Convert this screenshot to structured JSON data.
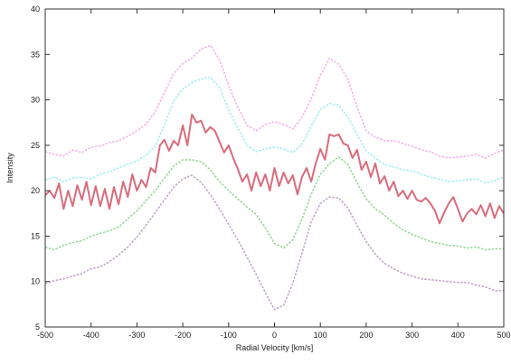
{
  "chart_data": {
    "type": "line",
    "title": "",
    "xlabel": "Radial Velocity [km/s]",
    "ylabel": "Intensity",
    "xlim": [
      -500,
      500
    ],
    "ylim": [
      5,
      40
    ],
    "grid": false,
    "legend": "none",
    "x_ticks": [
      -500,
      -400,
      -300,
      -200,
      -100,
      0,
      100,
      200,
      300,
      400,
      500
    ],
    "y_ticks": [
      5,
      10,
      15,
      20,
      25,
      30,
      35,
      40
    ],
    "x_tick_labels": [
      "-500",
      "-400",
      "-300",
      "-200",
      "-100",
      "0",
      "100",
      "200",
      "300",
      "400",
      "500"
    ],
    "y_tick_labels": [
      "5",
      "10",
      "15",
      "20",
      "25",
      "30",
      "35",
      "40"
    ],
    "series": [
      {
        "color": "#f2b6e6",
        "style": "dashed",
        "x": [
          -500,
          -480,
          -460,
          -440,
          -420,
          -400,
          -380,
          -360,
          -340,
          -320,
          -300,
          -280,
          -260,
          -240,
          -220,
          -200,
          -180,
          -160,
          -140,
          -120,
          -100,
          -80,
          -60,
          -40,
          -20,
          0,
          20,
          40,
          60,
          80,
          100,
          120,
          140,
          160,
          180,
          200,
          220,
          240,
          260,
          280,
          300,
          320,
          340,
          360,
          380,
          400,
          420,
          440,
          460,
          480,
          500
        ],
        "y": [
          24.3,
          24.0,
          23.8,
          24.5,
          24.2,
          24.8,
          24.9,
          25.3,
          25.5,
          26.0,
          26.6,
          27.3,
          28.7,
          30.8,
          32.9,
          34.0,
          34.6,
          35.6,
          36.0,
          34.4,
          31.6,
          29.2,
          27.2,
          26.6,
          27.3,
          27.6,
          27.3,
          26.8,
          28.1,
          30.1,
          32.7,
          34.6,
          33.9,
          32.3,
          29.2,
          26.6,
          25.9,
          25.5,
          25.5,
          25.2,
          24.9,
          24.5,
          24.3,
          23.8,
          23.6,
          23.7,
          23.8,
          24.0,
          23.6,
          24.1,
          24.5
        ]
      },
      {
        "color": "#a6eeee",
        "style": "dashed",
        "x": [
          -500,
          -480,
          -460,
          -440,
          -420,
          -400,
          -380,
          -360,
          -340,
          -320,
          -300,
          -280,
          -260,
          -240,
          -220,
          -200,
          -180,
          -160,
          -140,
          -120,
          -100,
          -80,
          -60,
          -40,
          -20,
          0,
          20,
          40,
          60,
          80,
          100,
          120,
          140,
          160,
          180,
          200,
          220,
          240,
          260,
          280,
          300,
          320,
          340,
          360,
          380,
          400,
          420,
          440,
          460,
          480,
          500
        ],
        "y": [
          21.2,
          21.5,
          21.0,
          21.4,
          21.5,
          21.3,
          21.8,
          22.1,
          22.5,
          22.9,
          23.3,
          23.9,
          24.9,
          27.2,
          29.9,
          31.2,
          31.9,
          32.3,
          32.5,
          31.4,
          28.9,
          26.9,
          25.0,
          24.3,
          24.6,
          24.8,
          24.6,
          24.2,
          25.1,
          27.1,
          28.9,
          29.6,
          29.4,
          28.1,
          26.2,
          24.4,
          23.6,
          22.9,
          22.6,
          22.3,
          22.2,
          21.8,
          21.5,
          21.3,
          21.0,
          21.1,
          21.2,
          21.3,
          20.9,
          21.1,
          21.5
        ]
      },
      {
        "color": "#d96c7c",
        "style": "solid",
        "x": [
          -500,
          -490,
          -480,
          -470,
          -460,
          -450,
          -440,
          -430,
          -420,
          -410,
          -400,
          -390,
          -380,
          -370,
          -360,
          -350,
          -340,
          -330,
          -320,
          -310,
          -300,
          -290,
          -280,
          -270,
          -260,
          -250,
          -240,
          -230,
          -220,
          -210,
          -200,
          -190,
          -180,
          -170,
          -160,
          -150,
          -140,
          -130,
          -120,
          -110,
          -100,
          -90,
          -80,
          -70,
          -60,
          -50,
          -40,
          -30,
          -20,
          -10,
          0,
          10,
          20,
          30,
          40,
          50,
          60,
          70,
          80,
          90,
          100,
          110,
          120,
          130,
          140,
          150,
          160,
          170,
          180,
          190,
          200,
          210,
          220,
          230,
          240,
          250,
          260,
          270,
          280,
          290,
          300,
          310,
          320,
          330,
          340,
          350,
          360,
          370,
          380,
          390,
          400,
          410,
          420,
          430,
          440,
          450,
          460,
          470,
          480,
          490,
          500
        ],
        "y": [
          19.5,
          20.0,
          19.2,
          20.8,
          18.0,
          20.0,
          18.3,
          20.6,
          19.0,
          21.0,
          18.4,
          20.5,
          18.3,
          20.2,
          18.0,
          20.4,
          18.5,
          21.0,
          19.3,
          21.8,
          20.0,
          21.2,
          20.4,
          22.5,
          22.0,
          25.0,
          25.6,
          24.4,
          25.5,
          25.0,
          27.2,
          25.0,
          28.4,
          27.5,
          27.7,
          26.4,
          27.0,
          26.6,
          25.4,
          24.2,
          25.0,
          23.6,
          22.4,
          21.0,
          21.8,
          20.0,
          22.0,
          20.5,
          21.8,
          20.0,
          22.5,
          20.5,
          22.0,
          20.8,
          21.7,
          19.6,
          21.5,
          22.5,
          21.0,
          23.0,
          24.6,
          23.4,
          26.2,
          26.0,
          26.2,
          25.2,
          25.0,
          23.6,
          24.5,
          22.3,
          23.2,
          21.5,
          23.0,
          20.8,
          21.6,
          20.0,
          21.0,
          19.4,
          20.0,
          19.1,
          20.0,
          19.0,
          18.8,
          19.2,
          18.6,
          17.8,
          16.4,
          17.6,
          18.6,
          19.3,
          18.0,
          16.6,
          17.5,
          18.0,
          17.4,
          18.4,
          17.2,
          18.6,
          17.0,
          18.3,
          17.5
        ]
      },
      {
        "color": "#9ad89a",
        "style": "dashed",
        "x": [
          -500,
          -480,
          -460,
          -440,
          -420,
          -400,
          -380,
          -360,
          -340,
          -320,
          -300,
          -280,
          -260,
          -240,
          -220,
          -200,
          -180,
          -160,
          -140,
          -120,
          -100,
          -80,
          -60,
          -40,
          -20,
          0,
          20,
          40,
          60,
          80,
          100,
          120,
          140,
          160,
          180,
          200,
          220,
          240,
          260,
          280,
          300,
          320,
          340,
          360,
          380,
          400,
          420,
          440,
          460,
          480,
          500
        ],
        "y": [
          13.8,
          13.5,
          14.0,
          14.3,
          14.5,
          15.0,
          15.3,
          15.6,
          16.0,
          16.9,
          17.8,
          18.9,
          20.0,
          21.4,
          22.7,
          23.4,
          23.4,
          23.2,
          22.3,
          21.0,
          20.0,
          19.1,
          18.2,
          17.4,
          15.9,
          14.2,
          13.7,
          14.6,
          16.9,
          19.6,
          21.8,
          23.0,
          23.7,
          22.9,
          20.9,
          19.1,
          18.0,
          17.3,
          16.4,
          15.7,
          15.2,
          14.8,
          14.4,
          14.2,
          14.0,
          13.9,
          13.7,
          13.8,
          13.5,
          13.6,
          13.6
        ]
      },
      {
        "color": "#c2a8c8",
        "style": "dashed",
        "x": [
          -500,
          -480,
          -460,
          -440,
          -420,
          -400,
          -380,
          -360,
          -340,
          -320,
          -300,
          -280,
          -260,
          -240,
          -220,
          -200,
          -180,
          -160,
          -140,
          -120,
          -100,
          -80,
          -60,
          -40,
          -20,
          0,
          20,
          40,
          60,
          80,
          100,
          120,
          140,
          160,
          180,
          200,
          220,
          240,
          260,
          280,
          300,
          320,
          340,
          360,
          380,
          400,
          420,
          440,
          460,
          480,
          500
        ],
        "y": [
          9.8,
          10.1,
          10.3,
          10.6,
          10.9,
          11.4,
          11.6,
          12.2,
          12.9,
          13.8,
          14.9,
          16.2,
          17.6,
          19.0,
          20.4,
          21.3,
          21.7,
          20.9,
          19.6,
          18.0,
          16.3,
          14.6,
          12.7,
          10.8,
          8.8,
          6.9,
          7.4,
          9.8,
          13.1,
          16.6,
          18.6,
          19.3,
          19.2,
          18.1,
          16.2,
          14.4,
          13.0,
          12.0,
          11.4,
          10.9,
          10.6,
          10.3,
          10.2,
          10.1,
          10.0,
          9.9,
          9.9,
          9.6,
          9.4,
          9.0,
          9.0
        ]
      }
    ]
  }
}
